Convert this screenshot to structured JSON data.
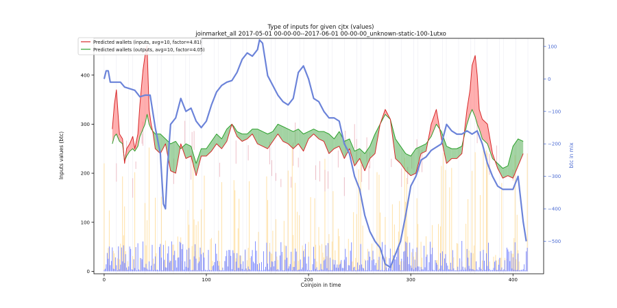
{
  "chart_data": {
    "type": "line",
    "title": "Type of inputs for given cjtx (values)",
    "subtitle": "joinmarket_all 2017-05-01 00-00-00--2017-06-01 00-00-00_unknown-static-100-1utxo",
    "xlabel": "Coinjoin in time",
    "ylabel": "Inputs values (btc)",
    "y2label": "btc in mix",
    "xlim": [
      -10,
      430
    ],
    "ylim": [
      -5,
      475
    ],
    "y2lim": [
      -600,
      125
    ],
    "xticks": [
      0,
      100,
      200,
      300,
      400
    ],
    "yticks": [
      0,
      100,
      200,
      300,
      400
    ],
    "y2ticks": [
      100,
      0,
      -100,
      -200,
      -300,
      -400,
      -500
    ],
    "y2ticklabels": [
      "100",
      "0",
      "−100",
      "−200",
      "−300",
      "−400",
      "−500"
    ],
    "legend_position": "top-left",
    "colors": {
      "inputs": "#d62728",
      "outputs": "#2ca02c",
      "btc_in_mix": "#6b83d9",
      "bars_blue": "#5a6bff",
      "bars_orange": "#ffd27a",
      "bars_pink": "#e8a7b3"
    },
    "series": [
      {
        "name": "Predicted wallets (inputs, avg=10, factor=4.81)",
        "axis": "left",
        "x": [
          0,
          5,
          8,
          10,
          12,
          15,
          18,
          20,
          22,
          25,
          28,
          30,
          33,
          35,
          38,
          40,
          42,
          44,
          46,
          48,
          50,
          55,
          60,
          65,
          70,
          75,
          80,
          85,
          90,
          95,
          100,
          105,
          110,
          115,
          120,
          125,
          127,
          130,
          135,
          140,
          145,
          150,
          155,
          160,
          165,
          170,
          175,
          180,
          185,
          190,
          195,
          200,
          205,
          210,
          215,
          220,
          225,
          230,
          235,
          240,
          245,
          250,
          255,
          260,
          265,
          270,
          275,
          280,
          285,
          290,
          295,
          300,
          305,
          310,
          315,
          320,
          325,
          330,
          335,
          340,
          345,
          350,
          355,
          358,
          360,
          363,
          365,
          367,
          370,
          375,
          380,
          385,
          390,
          395,
          400,
          405,
          410
        ],
        "values": [
          null,
          null,
          290,
          340,
          370,
          280,
          270,
          220,
          250,
          260,
          275,
          250,
          280,
          340,
          410,
          440,
          460,
          330,
          300,
          280,
          250,
          240,
          260,
          205,
          200,
          260,
          230,
          235,
          195,
          235,
          235,
          245,
          260,
          250,
          265,
          300,
          290,
          275,
          265,
          270,
          280,
          260,
          255,
          250,
          265,
          280,
          265,
          260,
          250,
          260,
          245,
          270,
          280,
          270,
          265,
          240,
          250,
          255,
          230,
          250,
          215,
          230,
          205,
          230,
          240,
          300,
          330,
          310,
          230,
          220,
          205,
          195,
          200,
          240,
          245,
          300,
          330,
          270,
          220,
          230,
          230,
          240,
          330,
          370,
          420,
          440,
          400,
          330,
          310,
          300,
          240,
          210,
          190,
          195,
          190,
          215,
          240
        ]
      },
      {
        "name": "Predicted wallets (outputs, avg=10, factor=4.05)",
        "axis": "left",
        "x": [
          0,
          5,
          8,
          10,
          12,
          15,
          18,
          20,
          22,
          25,
          28,
          30,
          33,
          35,
          38,
          40,
          42,
          44,
          46,
          48,
          50,
          55,
          60,
          65,
          70,
          75,
          80,
          85,
          90,
          95,
          100,
          105,
          110,
          115,
          120,
          125,
          127,
          130,
          135,
          140,
          145,
          150,
          155,
          160,
          165,
          170,
          175,
          180,
          185,
          190,
          195,
          200,
          205,
          210,
          215,
          220,
          225,
          230,
          235,
          240,
          245,
          250,
          255,
          260,
          265,
          270,
          275,
          280,
          285,
          290,
          295,
          300,
          305,
          310,
          315,
          320,
          325,
          330,
          335,
          340,
          345,
          350,
          355,
          358,
          360,
          363,
          365,
          367,
          370,
          375,
          380,
          385,
          390,
          395,
          400,
          405,
          410
        ],
        "values": [
          null,
          null,
          260,
          275,
          280,
          265,
          260,
          225,
          235,
          245,
          250,
          245,
          255,
          275,
          290,
          300,
          320,
          300,
          290,
          285,
          280,
          280,
          270,
          260,
          265,
          250,
          260,
          255,
          220,
          250,
          250,
          265,
          280,
          270,
          290,
          300,
          295,
          285,
          280,
          280,
          290,
          290,
          285,
          280,
          285,
          300,
          295,
          290,
          285,
          290,
          280,
          285,
          290,
          285,
          285,
          280,
          270,
          285,
          265,
          270,
          245,
          250,
          240,
          255,
          280,
          300,
          320,
          310,
          270,
          255,
          240,
          235,
          250,
          255,
          260,
          275,
          300,
          285,
          255,
          250,
          250,
          255,
          300,
          320,
          330,
          315,
          300,
          290,
          270,
          260,
          230,
          220,
          210,
          215,
          255,
          270,
          265
        ]
      },
      {
        "name": "btc in mix",
        "axis": "right",
        "x": [
          0,
          2,
          4,
          6,
          8,
          12,
          16,
          20,
          25,
          30,
          35,
          40,
          45,
          50,
          55,
          58,
          60,
          62,
          65,
          70,
          75,
          80,
          85,
          90,
          95,
          100,
          105,
          110,
          115,
          120,
          125,
          130,
          135,
          140,
          145,
          150,
          152,
          155,
          160,
          170,
          175,
          180,
          185,
          190,
          195,
          200,
          205,
          210,
          215,
          220,
          225,
          230,
          235,
          240,
          245,
          250,
          255,
          260,
          265,
          270,
          275,
          280,
          285,
          290,
          295,
          300,
          305,
          310,
          315,
          320,
          325,
          330,
          335,
          340,
          345,
          350,
          355,
          360,
          365,
          370,
          375,
          380,
          385,
          390,
          395,
          400,
          405,
          410,
          413
        ],
        "values": [
          0,
          25,
          25,
          -10,
          -10,
          -10,
          -10,
          -25,
          -30,
          -35,
          -55,
          -50,
          -50,
          -150,
          -230,
          -385,
          -400,
          -270,
          -140,
          -120,
          -60,
          -100,
          -90,
          -130,
          -150,
          -130,
          -80,
          -40,
          -20,
          -10,
          -5,
          20,
          60,
          80,
          70,
          90,
          120,
          110,
          10,
          -50,
          -70,
          -80,
          -60,
          20,
          40,
          0,
          -60,
          -70,
          -100,
          -120,
          -120,
          -130,
          -200,
          -230,
          -300,
          -340,
          -420,
          -470,
          -500,
          -520,
          -570,
          -580,
          -540,
          -500,
          -420,
          -330,
          -300,
          -250,
          -240,
          -220,
          -210,
          -200,
          -140,
          -160,
          -170,
          -170,
          -160,
          -170,
          -160,
          -200,
          -260,
          -300,
          -330,
          -340,
          -340,
          -340,
          -300,
          -440,
          -500
        ]
      }
    ]
  }
}
